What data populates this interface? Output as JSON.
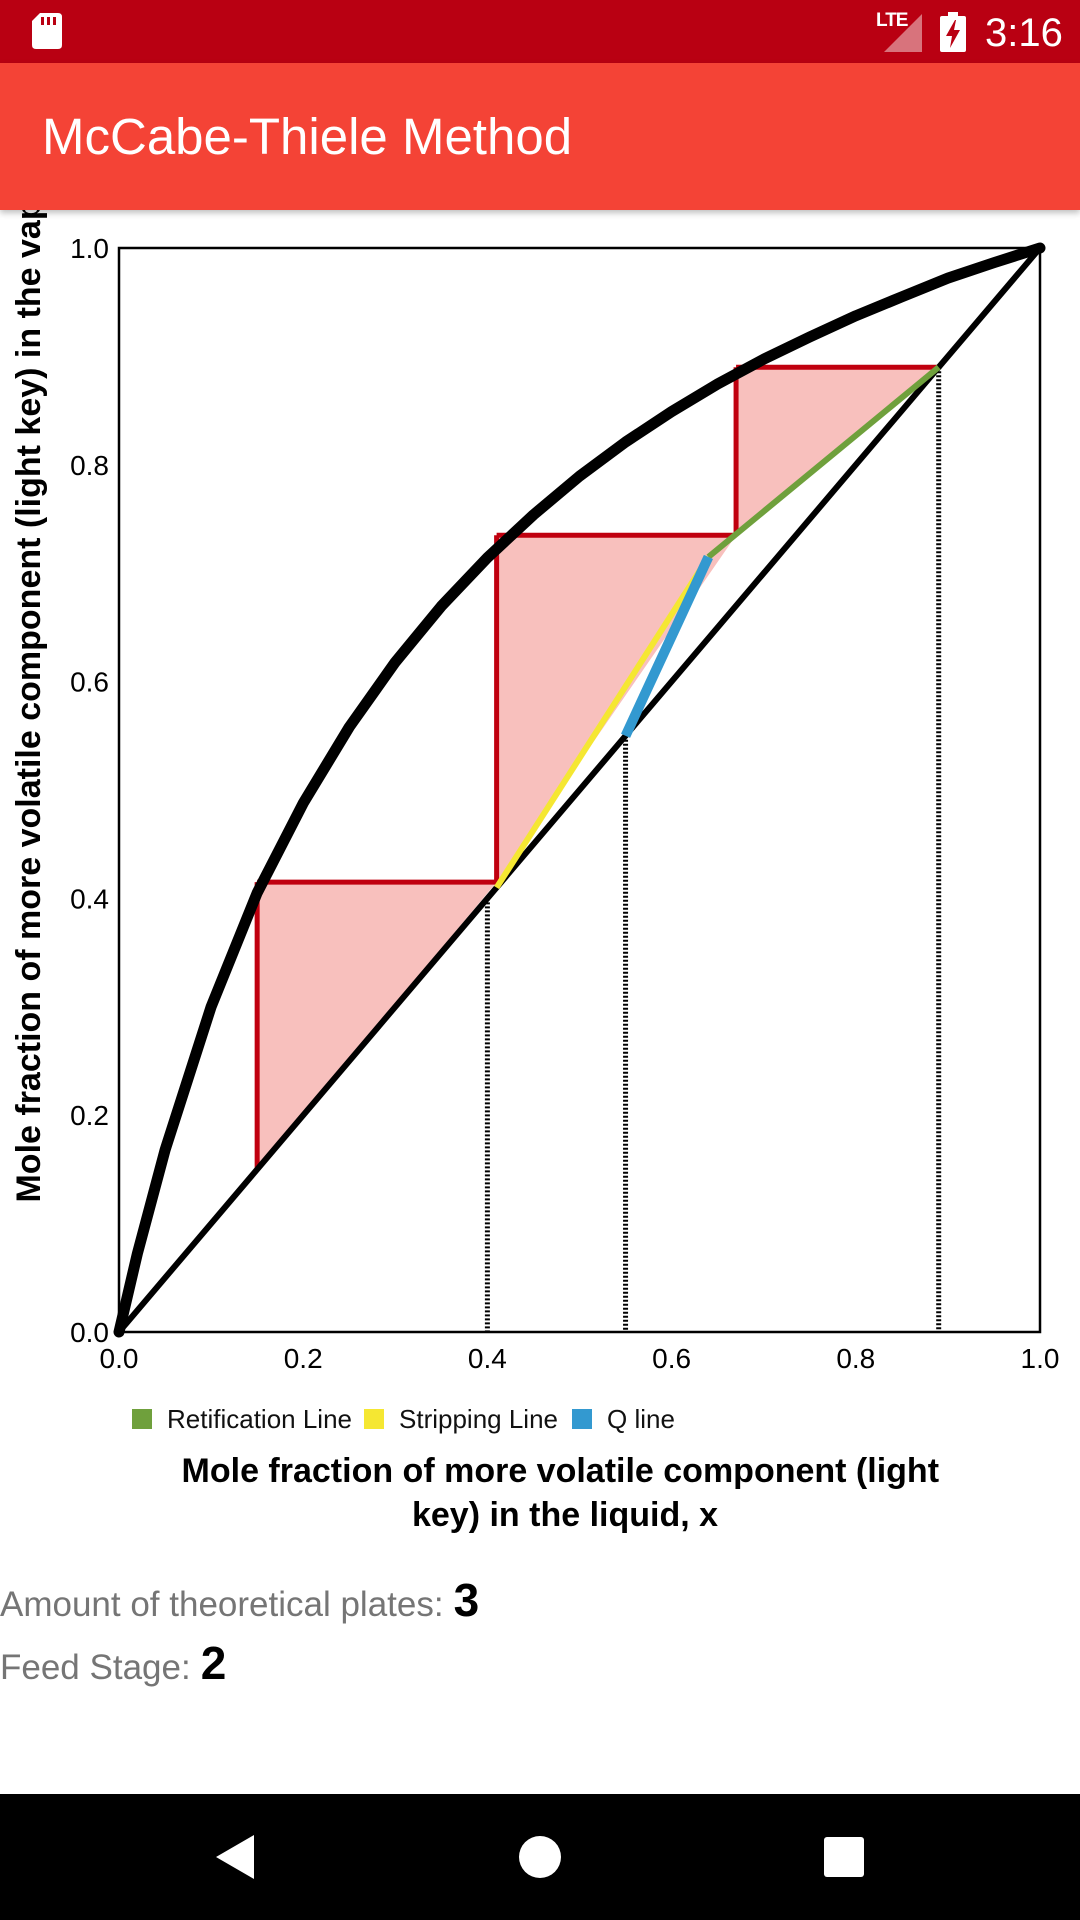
{
  "status_bar": {
    "network": "LTE",
    "time": "3:16",
    "icons": [
      "sd-card-icon",
      "signal-icon",
      "battery-charging-icon"
    ]
  },
  "app_bar": {
    "title": "McCabe-Thiele Method"
  },
  "chart_data": {
    "type": "line",
    "xlabel": "Mole fraction of more volatile component (light key) in the liquid, x",
    "ylabel": "Mole fraction of more volatile component (light key) in the vapor, y",
    "xlim": [
      0,
      1
    ],
    "ylim": [
      0,
      1
    ],
    "xticks": [
      "0.0",
      "0.2",
      "0.4",
      "0.6",
      "0.8",
      "1.0"
    ],
    "yticks": [
      "0.0",
      "0.2",
      "0.4",
      "0.6",
      "0.8",
      "1.0"
    ],
    "grid": false,
    "legend_position": "bottom",
    "equilibrium_curve": {
      "x": [
        0,
        0.02,
        0.05,
        0.1,
        0.15,
        0.2,
        0.25,
        0.3,
        0.35,
        0.4,
        0.45,
        0.5,
        0.55,
        0.6,
        0.65,
        0.7,
        0.75,
        0.8,
        0.85,
        0.9,
        0.95,
        1.0
      ],
      "y": [
        0,
        0.0724,
        0.168,
        0.3,
        0.405,
        0.4878,
        0.5581,
        0.618,
        0.6696,
        0.7143,
        0.7539,
        0.7895,
        0.821,
        0.8491,
        0.8745,
        0.8974,
        0.918,
        0.9375,
        0.955,
        0.9722,
        0.9864,
        1.0
      ],
      "color": "#000000"
    },
    "diagonal": {
      "x": [
        0,
        1
      ],
      "y": [
        0,
        1
      ],
      "color": "#000000"
    },
    "series": [
      {
        "name": "Retification Line",
        "x": [
          0.64,
          0.89
        ],
        "y": [
          0.715,
          0.89
        ],
        "color": "#6fa03c"
      },
      {
        "name": "Stripping Line",
        "x": [
          0.41,
          0.64
        ],
        "y": [
          0.41,
          0.715
        ],
        "color": "#f5e732"
      },
      {
        "name": "Q line",
        "x": [
          0.55,
          0.64
        ],
        "y": [
          0.55,
          0.715
        ],
        "color": "#3399d0"
      }
    ],
    "stages": [
      {
        "x_top": 0.67,
        "y_top": 0.89,
        "x_diag": 0.89,
        "y_bottom": 0.735
      },
      {
        "x_top": 0.41,
        "y_top": 0.735,
        "x_diag": 0.67,
        "y_bottom": 0.415
      },
      {
        "x_top": 0.15,
        "y_top": 0.415,
        "x_diag": 0.41,
        "y_bottom": 0.15
      }
    ],
    "stage_color": "#c0000f",
    "stage_fill": "#f8c0bd",
    "reference_x": [
      0.4,
      0.55,
      0.89
    ]
  },
  "results": {
    "plates_label": "Amount of theoretical plates:",
    "plates_value": "3",
    "feed_label": "Feed Stage:",
    "feed_value": "2"
  },
  "nav_bar": {
    "icons": [
      "back-icon",
      "home-icon",
      "recents-icon"
    ]
  }
}
